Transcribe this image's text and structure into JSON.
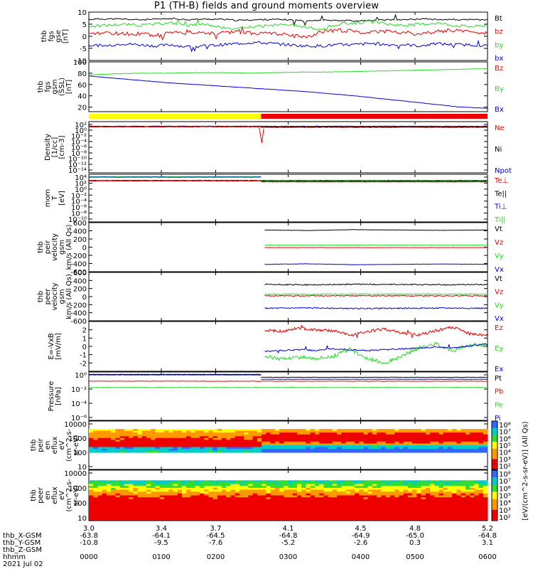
{
  "title": "P1 (TH-B) fields and ground moments overview",
  "date_label": "2021 Jul 02",
  "colors": {
    "black": "#000000",
    "red": "#ee0000",
    "green": "#22dd22",
    "blue": "#0000dd",
    "yellow": "#ffff00",
    "bar_red": "#ee0000"
  },
  "chart_data": [
    {
      "id": "fgs-gse",
      "type": "line",
      "ylabel": [
        "thb",
        "fgs",
        "gse",
        "[nT]"
      ],
      "ylim": [
        -10,
        10
      ],
      "yticks": [
        "10",
        "5",
        "0",
        "-5",
        "-10"
      ],
      "series": [
        {
          "name": "Bt",
          "color": "#000000",
          "values": [
            7,
            7.2,
            7.1,
            6.8,
            7,
            7.3,
            6.9,
            7.1,
            7,
            6.6,
            6.8,
            7,
            6.8,
            6.5,
            6.7,
            6.6,
            6.4,
            6.5,
            6.8,
            6.9,
            7.2,
            7,
            6.9,
            6.8,
            6.9
          ]
        },
        {
          "name": "bz",
          "color": "#ee0000",
          "values": [
            0.5,
            1.5,
            1,
            1,
            0.5,
            1.2,
            2,
            1,
            1.5,
            2,
            1,
            1.5,
            0.5,
            -0.5,
            2,
            2.5,
            2,
            1.5,
            2,
            1.5,
            1,
            2,
            2.5,
            1.5,
            0.5
          ]
        },
        {
          "name": "by",
          "color": "#22dd22",
          "values": [
            4,
            4.5,
            5,
            4.5,
            5,
            5.5,
            4.5,
            5,
            3.5,
            3,
            4,
            4.5,
            5,
            4,
            3,
            5,
            5.5,
            6,
            5,
            4.5,
            5,
            5.5,
            4.5,
            4,
            4.5
          ]
        },
        {
          "name": "bx",
          "color": "#0000dd",
          "values": [
            -3.5,
            -4,
            -3,
            -3.5,
            -4,
            -3.5,
            -4.5,
            -4,
            -3.5,
            -3,
            -2.5,
            -3,
            -3.5,
            -4,
            -4,
            -3.5,
            -3.5,
            -3,
            -3.5,
            -3.5,
            -4,
            -3,
            -3.5,
            -3.5,
            -4
          ]
        }
      ]
    },
    {
      "id": "fgs-gsm",
      "type": "line",
      "ylabel": [
        "thb",
        "fgs",
        "gsm",
        "(SSL)",
        "[nT]"
      ],
      "ylim": [
        12,
        100
      ],
      "yticks": [
        "100",
        "80",
        "60",
        "40",
        "20"
      ],
      "series": [
        {
          "name": "Bz",
          "color": "#ee0000",
          "values": []
        },
        {
          "name": "By",
          "color": "#22dd22",
          "values": [
            77,
            79,
            80,
            80,
            81,
            81,
            80,
            81,
            82,
            82,
            83,
            84,
            85,
            86,
            87,
            88
          ]
        },
        {
          "name": "Bx",
          "color": "#0000dd",
          "values": [
            75,
            71,
            67,
            63,
            60,
            57,
            54,
            51,
            48,
            44,
            40,
            35,
            30,
            25,
            20,
            18
          ]
        }
      ]
    },
    {
      "id": "region-bar",
      "type": "bar",
      "segments": [
        {
          "from": 3.0,
          "to": 3.95,
          "color": "#ffff00"
        },
        {
          "from": 3.95,
          "to": 5.2,
          "color": "#ee0000"
        }
      ]
    },
    {
      "id": "density",
      "type": "line",
      "ylabel": [
        "Density",
        "[1/cc]",
        "[cm-3]"
      ],
      "ylim_log": [
        -14,
        2
      ],
      "yticks": [
        "10²",
        "10⁰",
        "10⁻²",
        "10⁻⁴",
        "10⁻⁶",
        "10⁻⁸",
        "10⁻¹⁰",
        "10⁻¹²",
        "10⁻¹⁴"
      ],
      "series": [
        {
          "name": "Ne",
          "color": "#ee0000"
        },
        {
          "name": "Ni",
          "color": "#000000"
        },
        {
          "name": "Npot",
          "color": "#0000dd"
        }
      ]
    },
    {
      "id": "temperature",
      "type": "line",
      "ylabel": [
        "mom",
        "T",
        "[eV]"
      ],
      "ylim_log": [
        -10,
        4
      ],
      "yticks": [
        "10⁴",
        "10²",
        "10⁰",
        "10⁻²",
        "10⁻⁴",
        "10⁻⁶",
        "10⁻⁸",
        "10⁻¹⁰"
      ],
      "series": [
        {
          "name": "Te⊥",
          "color": "#ee0000"
        },
        {
          "name": "Te||",
          "color": "#000000"
        },
        {
          "name": "Ti⊥",
          "color": "#0000dd"
        },
        {
          "name": "Ti||",
          "color": "#22dd22"
        }
      ]
    },
    {
      "id": "peir-velocity",
      "type": "line",
      "ylabel": [
        "thb",
        "peir",
        "velocity",
        "gsm",
        "km/s (All Qs)"
      ],
      "ylim": [
        -600,
        600
      ],
      "yticks": [
        "600",
        "400",
        "200",
        "0",
        "-200",
        "-400",
        "-600"
      ],
      "series": [
        {
          "name": "Vt",
          "color": "#000000",
          "value": 420
        },
        {
          "name": "Vz",
          "color": "#ee0000",
          "value": -10
        },
        {
          "name": "Vy",
          "color": "#22dd22",
          "value": 50
        },
        {
          "name": "Vx",
          "color": "#0000dd",
          "value": -420
        }
      ]
    },
    {
      "id": "peer-velocity",
      "type": "line",
      "ylabel": [
        "thb",
        "peer",
        "velocity",
        "gsm",
        "km/s (All Qs)"
      ],
      "ylim": [
        -600,
        600
      ],
      "yticks": [
        "600",
        "400",
        "200",
        "0",
        "-200",
        "-400",
        "-600"
      ],
      "series": [
        {
          "name": "Vt",
          "color": "#000000",
          "value": 300
        },
        {
          "name": "Vz",
          "color": "#ee0000",
          "value": 20
        },
        {
          "name": "Vy",
          "color": "#22dd22",
          "value": 60
        },
        {
          "name": "Vx",
          "color": "#0000dd",
          "value": -290
        }
      ]
    },
    {
      "id": "efield",
      "type": "line",
      "ylabel": [
        "E=-VxB",
        "[mV/m]"
      ],
      "ylim": [
        -3,
        3
      ],
      "yticks": [
        "2",
        "1",
        "0",
        "-1",
        "-2"
      ],
      "series": [
        {
          "name": "Ez",
          "color": "#ee0000",
          "values": [
            2,
            1.8,
            2.2,
            2,
            1.9,
            1.3,
            1.8,
            2.1,
            1.6,
            1.4,
            1.9,
            2.3,
            1.5,
            1.3
          ]
        },
        {
          "name": "Ey",
          "color": "#22dd22",
          "values": [
            -1.2,
            -1.5,
            -1.3,
            -1.4,
            -1.2,
            -0.3,
            -1.5,
            -2,
            -1.2,
            -0.2,
            0.3,
            -0.5,
            0.2,
            0.1
          ]
        },
        {
          "name": "Ex",
          "color": "#0000dd",
          "values": [
            -0.6,
            -0.5,
            -0.4,
            -0.5,
            -0.3,
            -0.4,
            -0.5,
            -0.4,
            -0.3,
            -0.2,
            -0.1,
            -0.2,
            0.1,
            0.3
          ]
        }
      ]
    },
    {
      "id": "pressure",
      "type": "line",
      "ylabel": [
        "Pressure",
        "[nPa]"
      ],
      "ylim_log": [
        -6,
        1
      ],
      "yticks": [
        "10⁰",
        "10⁻²",
        "10⁻⁴",
        "10⁻⁶"
      ],
      "series": [
        {
          "name": "Pt",
          "color": "#000000"
        },
        {
          "name": "Pb",
          "color": "#ee0000"
        },
        {
          "name": "Pe",
          "color": "#22dd22"
        },
        {
          "name": "Pi",
          "color": "#0000dd"
        }
      ]
    },
    {
      "id": "peir-eflux",
      "type": "heatmap",
      "ylabel": [
        "thb",
        "peir",
        "en",
        "eflux",
        "eV",
        "(cm^2-s-",
        "sr-eV)"
      ],
      "yticks": [
        "10000",
        "1000",
        "100",
        "10"
      ]
    },
    {
      "id": "peer-eflux",
      "type": "heatmap",
      "ylabel": [
        "thb",
        "peer",
        "en",
        "eflux",
        "eV",
        "(cm^2-s-",
        "sr-eV)"
      ],
      "yticks": [
        "10000",
        "1000",
        "100",
        "10"
      ]
    }
  ],
  "colorbar": {
    "label": "[eV/(cm^2-s-sr-eV)] (All Qs)",
    "ticks_top": [
      "10⁸",
      "10⁷",
      "10⁶",
      "10⁵",
      "10⁴",
      "10³",
      "10²"
    ],
    "ticks_bottom": [
      "10⁸",
      "10⁷",
      "10⁶",
      "10⁵",
      "10⁴",
      "10³",
      "10²"
    ]
  },
  "xaxis": {
    "hours": [
      3.0,
      3.4,
      3.7,
      4.1,
      4.5,
      4.8,
      5.2
    ],
    "rows": [
      {
        "label": "",
        "values": [
          "3.0",
          "3.4",
          "3.7",
          "4.1",
          "4.5",
          "4.8",
          "5.2"
        ]
      },
      {
        "label": "thb_X-GSM",
        "values": [
          "-63.8",
          "-64.1",
          "-64.5",
          "-64.8",
          "-64.9",
          "-65.0",
          "-64.8"
        ]
      },
      {
        "label": "thb_Y-GSM",
        "values": [
          "-10.8",
          "-9.5",
          "-7.6",
          "-5.2",
          "-2.6",
          "0.3",
          "3.1"
        ]
      },
      {
        "label": "thb_Z-GSM",
        "values": [
          "",
          "",
          "",
          "",
          "",
          "",
          ""
        ]
      },
      {
        "label": "hhmm",
        "values": [
          "0000",
          "0100",
          "0200",
          "0300",
          "0400",
          "0500",
          "0600"
        ]
      }
    ]
  }
}
